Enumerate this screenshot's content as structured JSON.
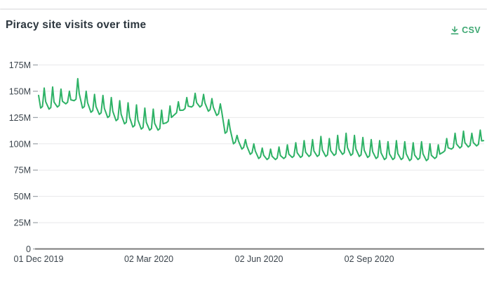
{
  "header": {
    "title": "Piracy site visits over time",
    "csv_label": "CSV"
  },
  "colors": {
    "line": "#2eb266",
    "csv_link": "#3fa873",
    "grid": "#e8e8ea",
    "axis": "#7b7b7b",
    "tick": "#9aa0a6",
    "tick_text": "#3b444c",
    "title_text": "#2c363e"
  },
  "chart_data": {
    "type": "line",
    "title": "Piracy site visits over time",
    "legend": false,
    "grid": true,
    "series": [
      {
        "name": "Piracy site visits",
        "unit": "visits (millions)",
        "color": "#2eb266"
      }
    ],
    "y_axis": {
      "tick_labels": [
        "0",
        "25M",
        "50M",
        "75M",
        "100M",
        "125M",
        "150M",
        "175M"
      ],
      "tick_values_m": [
        0,
        25,
        50,
        75,
        100,
        125,
        150,
        175
      ],
      "range_m": [
        0,
        175
      ]
    },
    "x_axis": {
      "tick_labels": [
        "01 Dec 2019",
        "02 Mar 2020",
        "02 Jun 2020",
        "02 Sep 2020"
      ],
      "tick_days": [
        0,
        92,
        184,
        276
      ],
      "span_days": 372,
      "start_date": "01 Dec 2019"
    },
    "start_value_m": 146,
    "end_value_m": 103,
    "weekly_envelope_m": [
      {
        "d": 0,
        "lo": 134,
        "hi": 153
      },
      {
        "d": 7,
        "lo": 133,
        "hi": 154
      },
      {
        "d": 14,
        "lo": 135,
        "hi": 152
      },
      {
        "d": 21,
        "lo": 138,
        "hi": 150
      },
      {
        "d": 28,
        "lo": 141,
        "hi": 162
      },
      {
        "d": 35,
        "lo": 134,
        "hi": 150
      },
      {
        "d": 42,
        "lo": 130,
        "hi": 147
      },
      {
        "d": 49,
        "lo": 128,
        "hi": 146
      },
      {
        "d": 56,
        "lo": 125,
        "hi": 144
      },
      {
        "d": 63,
        "lo": 122,
        "hi": 141
      },
      {
        "d": 70,
        "lo": 119,
        "hi": 139
      },
      {
        "d": 77,
        "lo": 116,
        "hi": 137
      },
      {
        "d": 84,
        "lo": 114,
        "hi": 134
      },
      {
        "d": 91,
        "lo": 113,
        "hi": 133
      },
      {
        "d": 98,
        "lo": 113,
        "hi": 132
      },
      {
        "d": 105,
        "lo": 120,
        "hi": 136
      },
      {
        "d": 112,
        "lo": 128,
        "hi": 140
      },
      {
        "d": 119,
        "lo": 132,
        "hi": 144
      },
      {
        "d": 126,
        "lo": 135,
        "hi": 148
      },
      {
        "d": 133,
        "lo": 135,
        "hi": 147
      },
      {
        "d": 140,
        "lo": 131,
        "hi": 143
      },
      {
        "d": 147,
        "lo": 127,
        "hi": 138
      },
      {
        "d": 154,
        "lo": 110,
        "hi": 123
      },
      {
        "d": 161,
        "lo": 100,
        "hi": 108
      },
      {
        "d": 168,
        "lo": 95,
        "hi": 104
      },
      {
        "d": 175,
        "lo": 90,
        "hi": 100
      },
      {
        "d": 182,
        "lo": 86,
        "hi": 96
      },
      {
        "d": 189,
        "lo": 85,
        "hi": 95
      },
      {
        "d": 196,
        "lo": 85,
        "hi": 97
      },
      {
        "d": 203,
        "lo": 86,
        "hi": 99
      },
      {
        "d": 210,
        "lo": 87,
        "hi": 101
      },
      {
        "d": 217,
        "lo": 87,
        "hi": 103
      },
      {
        "d": 224,
        "lo": 88,
        "hi": 104
      },
      {
        "d": 231,
        "lo": 88,
        "hi": 107
      },
      {
        "d": 238,
        "lo": 88,
        "hi": 105
      },
      {
        "d": 245,
        "lo": 89,
        "hi": 108
      },
      {
        "d": 252,
        "lo": 90,
        "hi": 110
      },
      {
        "d": 259,
        "lo": 89,
        "hi": 108
      },
      {
        "d": 266,
        "lo": 88,
        "hi": 106
      },
      {
        "d": 273,
        "lo": 87,
        "hi": 104
      },
      {
        "d": 280,
        "lo": 86,
        "hi": 103
      },
      {
        "d": 287,
        "lo": 85,
        "hi": 102
      },
      {
        "d": 294,
        "lo": 85,
        "hi": 103
      },
      {
        "d": 301,
        "lo": 85,
        "hi": 102
      },
      {
        "d": 308,
        "lo": 84,
        "hi": 101
      },
      {
        "d": 315,
        "lo": 85,
        "hi": 102
      },
      {
        "d": 322,
        "lo": 84,
        "hi": 100
      },
      {
        "d": 329,
        "lo": 86,
        "hi": 99
      },
      {
        "d": 336,
        "lo": 92,
        "hi": 105
      },
      {
        "d": 343,
        "lo": 95,
        "hi": 110
      },
      {
        "d": 350,
        "lo": 96,
        "hi": 112
      },
      {
        "d": 357,
        "lo": 97,
        "hi": 110
      },
      {
        "d": 364,
        "lo": 98,
        "hi": 113
      }
    ]
  }
}
